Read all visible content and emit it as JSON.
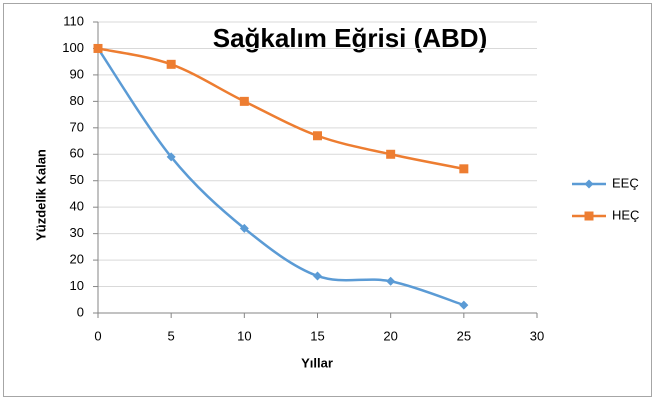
{
  "chart_data": {
    "type": "line",
    "title": "Sağkalım Eğrisi (ABD)",
    "xlabel": "Yıllar",
    "ylabel": "Yüzdelik Kalan",
    "x": [
      0,
      5,
      10,
      15,
      20,
      25
    ],
    "series": [
      {
        "name": "EEÇ",
        "color": "#5b9bd5",
        "marker": "diamond",
        "values": [
          100,
          59,
          32,
          14,
          12,
          3
        ]
      },
      {
        "name": "HEÇ",
        "color": "#ed7d31",
        "marker": "square",
        "values": [
          100,
          94,
          80,
          67,
          60,
          54.5
        ]
      }
    ],
    "xlim": [
      0,
      30
    ],
    "xticks": [
      0,
      5,
      10,
      15,
      20,
      25,
      30
    ],
    "ylim": [
      0,
      110
    ],
    "yticks": [
      0,
      10,
      20,
      30,
      40,
      50,
      60,
      70,
      80,
      90,
      100,
      110
    ],
    "grid": true,
    "smooth": true,
    "legend": "right"
  }
}
